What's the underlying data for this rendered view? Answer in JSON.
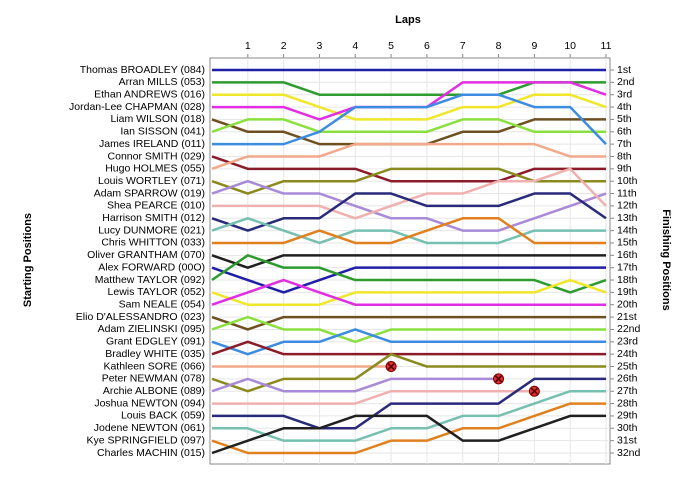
{
  "chart_data": {
    "type": "lap",
    "x_label": "Laps",
    "y_label": "Starting Positions",
    "y2_label": "Finishing Positions",
    "x": [
      0,
      1,
      2,
      3,
      4,
      5,
      6,
      7,
      8,
      9,
      10,
      11
    ],
    "xlim": [
      0,
      11
    ],
    "xticks": [
      1,
      2,
      3,
      4,
      5,
      6,
      7,
      8,
      9,
      10,
      11
    ],
    "ylim": [
      1,
      32
    ],
    "yticks": [
      {
        "value": 1,
        "label": "1st"
      },
      {
        "value": 2,
        "label": "2nd"
      },
      {
        "value": 3,
        "label": "3rd"
      },
      {
        "value": 4,
        "label": "4th"
      },
      {
        "value": 5,
        "label": "5th"
      },
      {
        "value": 6,
        "label": "6th"
      },
      {
        "value": 7,
        "label": "7th"
      },
      {
        "value": 8,
        "label": "8th"
      },
      {
        "value": 9,
        "label": "9th"
      },
      {
        "value": 10,
        "label": "10th"
      },
      {
        "value": 11,
        "label": "11th"
      },
      {
        "value": 12,
        "label": "12th"
      },
      {
        "value": 13,
        "label": "13th"
      },
      {
        "value": 14,
        "label": "14th"
      },
      {
        "value": 15,
        "label": "15th"
      },
      {
        "value": 16,
        "label": "16th"
      },
      {
        "value": 17,
        "label": "17th"
      },
      {
        "value": 18,
        "label": "18th"
      },
      {
        "value": 19,
        "label": "19th"
      },
      {
        "value": 20,
        "label": "20th"
      },
      {
        "value": 21,
        "label": "21st"
      },
      {
        "value": 22,
        "label": "22nd"
      },
      {
        "value": 23,
        "label": "23rd"
      },
      {
        "value": 24,
        "label": "24th"
      },
      {
        "value": 25,
        "label": "25th"
      },
      {
        "value": 26,
        "label": "26th"
      },
      {
        "value": 27,
        "label": "27th"
      },
      {
        "value": 28,
        "label": "28th"
      },
      {
        "value": 29,
        "label": "29th"
      },
      {
        "value": 30,
        "label": "30th"
      },
      {
        "value": 31,
        "label": "31st"
      },
      {
        "value": 32,
        "label": "32nd"
      }
    ],
    "grid": true,
    "series": [
      {
        "name": "Thomas BROADLEY (084)",
        "color": "#1f1fa8",
        "values": [
          1,
          1,
          1,
          1,
          1,
          1,
          1,
          1,
          1,
          1,
          1,
          1
        ]
      },
      {
        "name": "Arran MILLS (053)",
        "color": "#2e9b2e",
        "values": [
          2,
          2,
          2,
          3,
          3,
          3,
          3,
          3,
          3,
          2,
          2,
          2
        ]
      },
      {
        "name": "Ethan ANDREWS (016)",
        "color": "#f0e62a",
        "values": [
          3,
          3,
          3,
          4,
          5,
          5,
          5,
          4,
          4,
          3,
          3,
          4
        ]
      },
      {
        "name": "Jordan-Lee CHAPMAN (028)",
        "color": "#e22ee2",
        "values": [
          4,
          4,
          4,
          5,
          4,
          4,
          4,
          2,
          2,
          2,
          2,
          3
        ]
      },
      {
        "name": "Liam WILSON (018)",
        "color": "#6e5020",
        "values": [
          5,
          6,
          6,
          7,
          7,
          7,
          7,
          6,
          6,
          5,
          5,
          5
        ]
      },
      {
        "name": "Ian SISSON (041)",
        "color": "#8be040",
        "values": [
          6,
          5,
          5,
          6,
          6,
          6,
          6,
          5,
          5,
          6,
          6,
          6
        ]
      },
      {
        "name": "James IRELAND (011)",
        "color": "#3c8ce0",
        "values": [
          7,
          7,
          7,
          6,
          4,
          4,
          4,
          3,
          3,
          4,
          4,
          7
        ]
      },
      {
        "name": "Connor SMITH (029)",
        "color": "#8a1c2a",
        "values": [
          8,
          9,
          9,
          9,
          9,
          10,
          10,
          10,
          10,
          9,
          9,
          9
        ]
      },
      {
        "name": "Hugo HOLMES (055)",
        "color": "#f2a88a",
        "values": [
          9,
          8,
          8,
          8,
          7,
          7,
          7,
          7,
          7,
          7,
          8,
          8
        ]
      },
      {
        "name": "Louis WORTLEY (071)",
        "color": "#8a8a1e",
        "values": [
          10,
          11,
          10,
          10,
          10,
          9,
          9,
          9,
          9,
          10,
          10,
          10
        ]
      },
      {
        "name": "Adam SPARROW (019)",
        "color": "#a88ad8",
        "values": [
          11,
          10,
          11,
          11,
          12,
          13,
          13,
          14,
          14,
          13,
          12,
          11
        ]
      },
      {
        "name": "Shea PEARCE (010)",
        "color": "#f0b0b0",
        "values": [
          12,
          12,
          12,
          12,
          13,
          12,
          11,
          11,
          10,
          10,
          9,
          12
        ]
      },
      {
        "name": "Harrison SMITH (012)",
        "color": "#2a2a7a",
        "values": [
          13,
          14,
          13,
          13,
          11,
          11,
          12,
          12,
          12,
          11,
          11,
          13
        ]
      },
      {
        "name": "Lucy DUNMORE (021)",
        "color": "#76c0b0",
        "values": [
          14,
          13,
          14,
          15,
          14,
          14,
          15,
          15,
          15,
          14,
          14,
          14
        ]
      },
      {
        "name": "Chris WHITTON (033)",
        "color": "#e0801e",
        "values": [
          15,
          15,
          15,
          14,
          15,
          15,
          14,
          13,
          13,
          15,
          15,
          15
        ]
      },
      {
        "name": "Oliver GRANTHAM (070)",
        "color": "#202020",
        "values": [
          16,
          17,
          16,
          16,
          16,
          16,
          16,
          16,
          16,
          16,
          16,
          16
        ]
      },
      {
        "name": "Alex FORWARD (00O)",
        "color": "#1f1fa8",
        "values": [
          17,
          18,
          19,
          18,
          17,
          17,
          17,
          17,
          17,
          17,
          17,
          17
        ]
      },
      {
        "name": "Matthew TAYLOR (092)",
        "color": "#2e9b2e",
        "values": [
          18,
          16,
          17,
          17,
          18,
          18,
          18,
          18,
          18,
          18,
          19,
          18
        ]
      },
      {
        "name": "Lewis TAYLOR (052)",
        "color": "#f0e62a",
        "values": [
          19,
          20,
          20,
          20,
          19,
          19,
          19,
          19,
          19,
          19,
          18,
          19
        ]
      },
      {
        "name": "Sam NEALE (054)",
        "color": "#e22ee2",
        "values": [
          20,
          19,
          18,
          19,
          20,
          20,
          20,
          20,
          20,
          20,
          20,
          20
        ]
      },
      {
        "name": "Elio D'ALESSANDRO (023)",
        "color": "#6e5020",
        "values": [
          21,
          22,
          21,
          21,
          21,
          21,
          21,
          21,
          21,
          21,
          21,
          21
        ]
      },
      {
        "name": "Adam ZIELINSKI (095)",
        "color": "#8be040",
        "values": [
          22,
          21,
          22,
          22,
          23,
          22,
          22,
          22,
          22,
          22,
          22,
          22
        ]
      },
      {
        "name": "Grant EDGLEY (091)",
        "color": "#3c8ce0",
        "values": [
          23,
          24,
          23,
          23,
          22,
          23,
          23,
          23,
          23,
          23,
          23,
          23
        ]
      },
      {
        "name": "Bradley WHITE (035)",
        "color": "#8a1c2a",
        "values": [
          24,
          23,
          24,
          24,
          24,
          24,
          24,
          24,
          24,
          24,
          24,
          24
        ]
      },
      {
        "name": "Kathleen SORE (066)",
        "color": "#f2a88a",
        "values": [
          25,
          25,
          25,
          25,
          25,
          25,
          null,
          null,
          null,
          null,
          null,
          null
        ]
      },
      {
        "name": "Peter NEWMAN (078)",
        "color": "#8a8a1e",
        "values": [
          26,
          27,
          26,
          26,
          26,
          24,
          25,
          25,
          25,
          25,
          25,
          25
        ]
      },
      {
        "name": "Archie ALBONE (089)",
        "color": "#a88ad8",
        "values": [
          27,
          26,
          27,
          27,
          27,
          26,
          26,
          26,
          26,
          null,
          null,
          null
        ]
      },
      {
        "name": "Joshua NEWTON (094)",
        "color": "#f0b0b0",
        "values": [
          28,
          28,
          28,
          28,
          28,
          27,
          27,
          27,
          27,
          27,
          null,
          null
        ]
      },
      {
        "name": "Louis BACK (059)",
        "color": "#2a2a7a",
        "values": [
          29,
          29,
          29,
          30,
          30,
          28,
          28,
          28,
          28,
          26,
          26,
          26
        ]
      },
      {
        "name": "Jodene NEWTON (061)",
        "color": "#76c0b0",
        "values": [
          30,
          30,
          31,
          31,
          31,
          30,
          30,
          29,
          29,
          28,
          27,
          27
        ]
      },
      {
        "name": "Kye SPRINGFIELD (097)",
        "color": "#e0801e",
        "values": [
          31,
          32,
          32,
          32,
          32,
          31,
          31,
          30,
          30,
          29,
          28,
          28
        ]
      },
      {
        "name": "Charles MACHIN (015)",
        "color": "#202020",
        "values": [
          32,
          31,
          30,
          30,
          29,
          29,
          29,
          31,
          31,
          30,
          29,
          29
        ]
      }
    ]
  }
}
